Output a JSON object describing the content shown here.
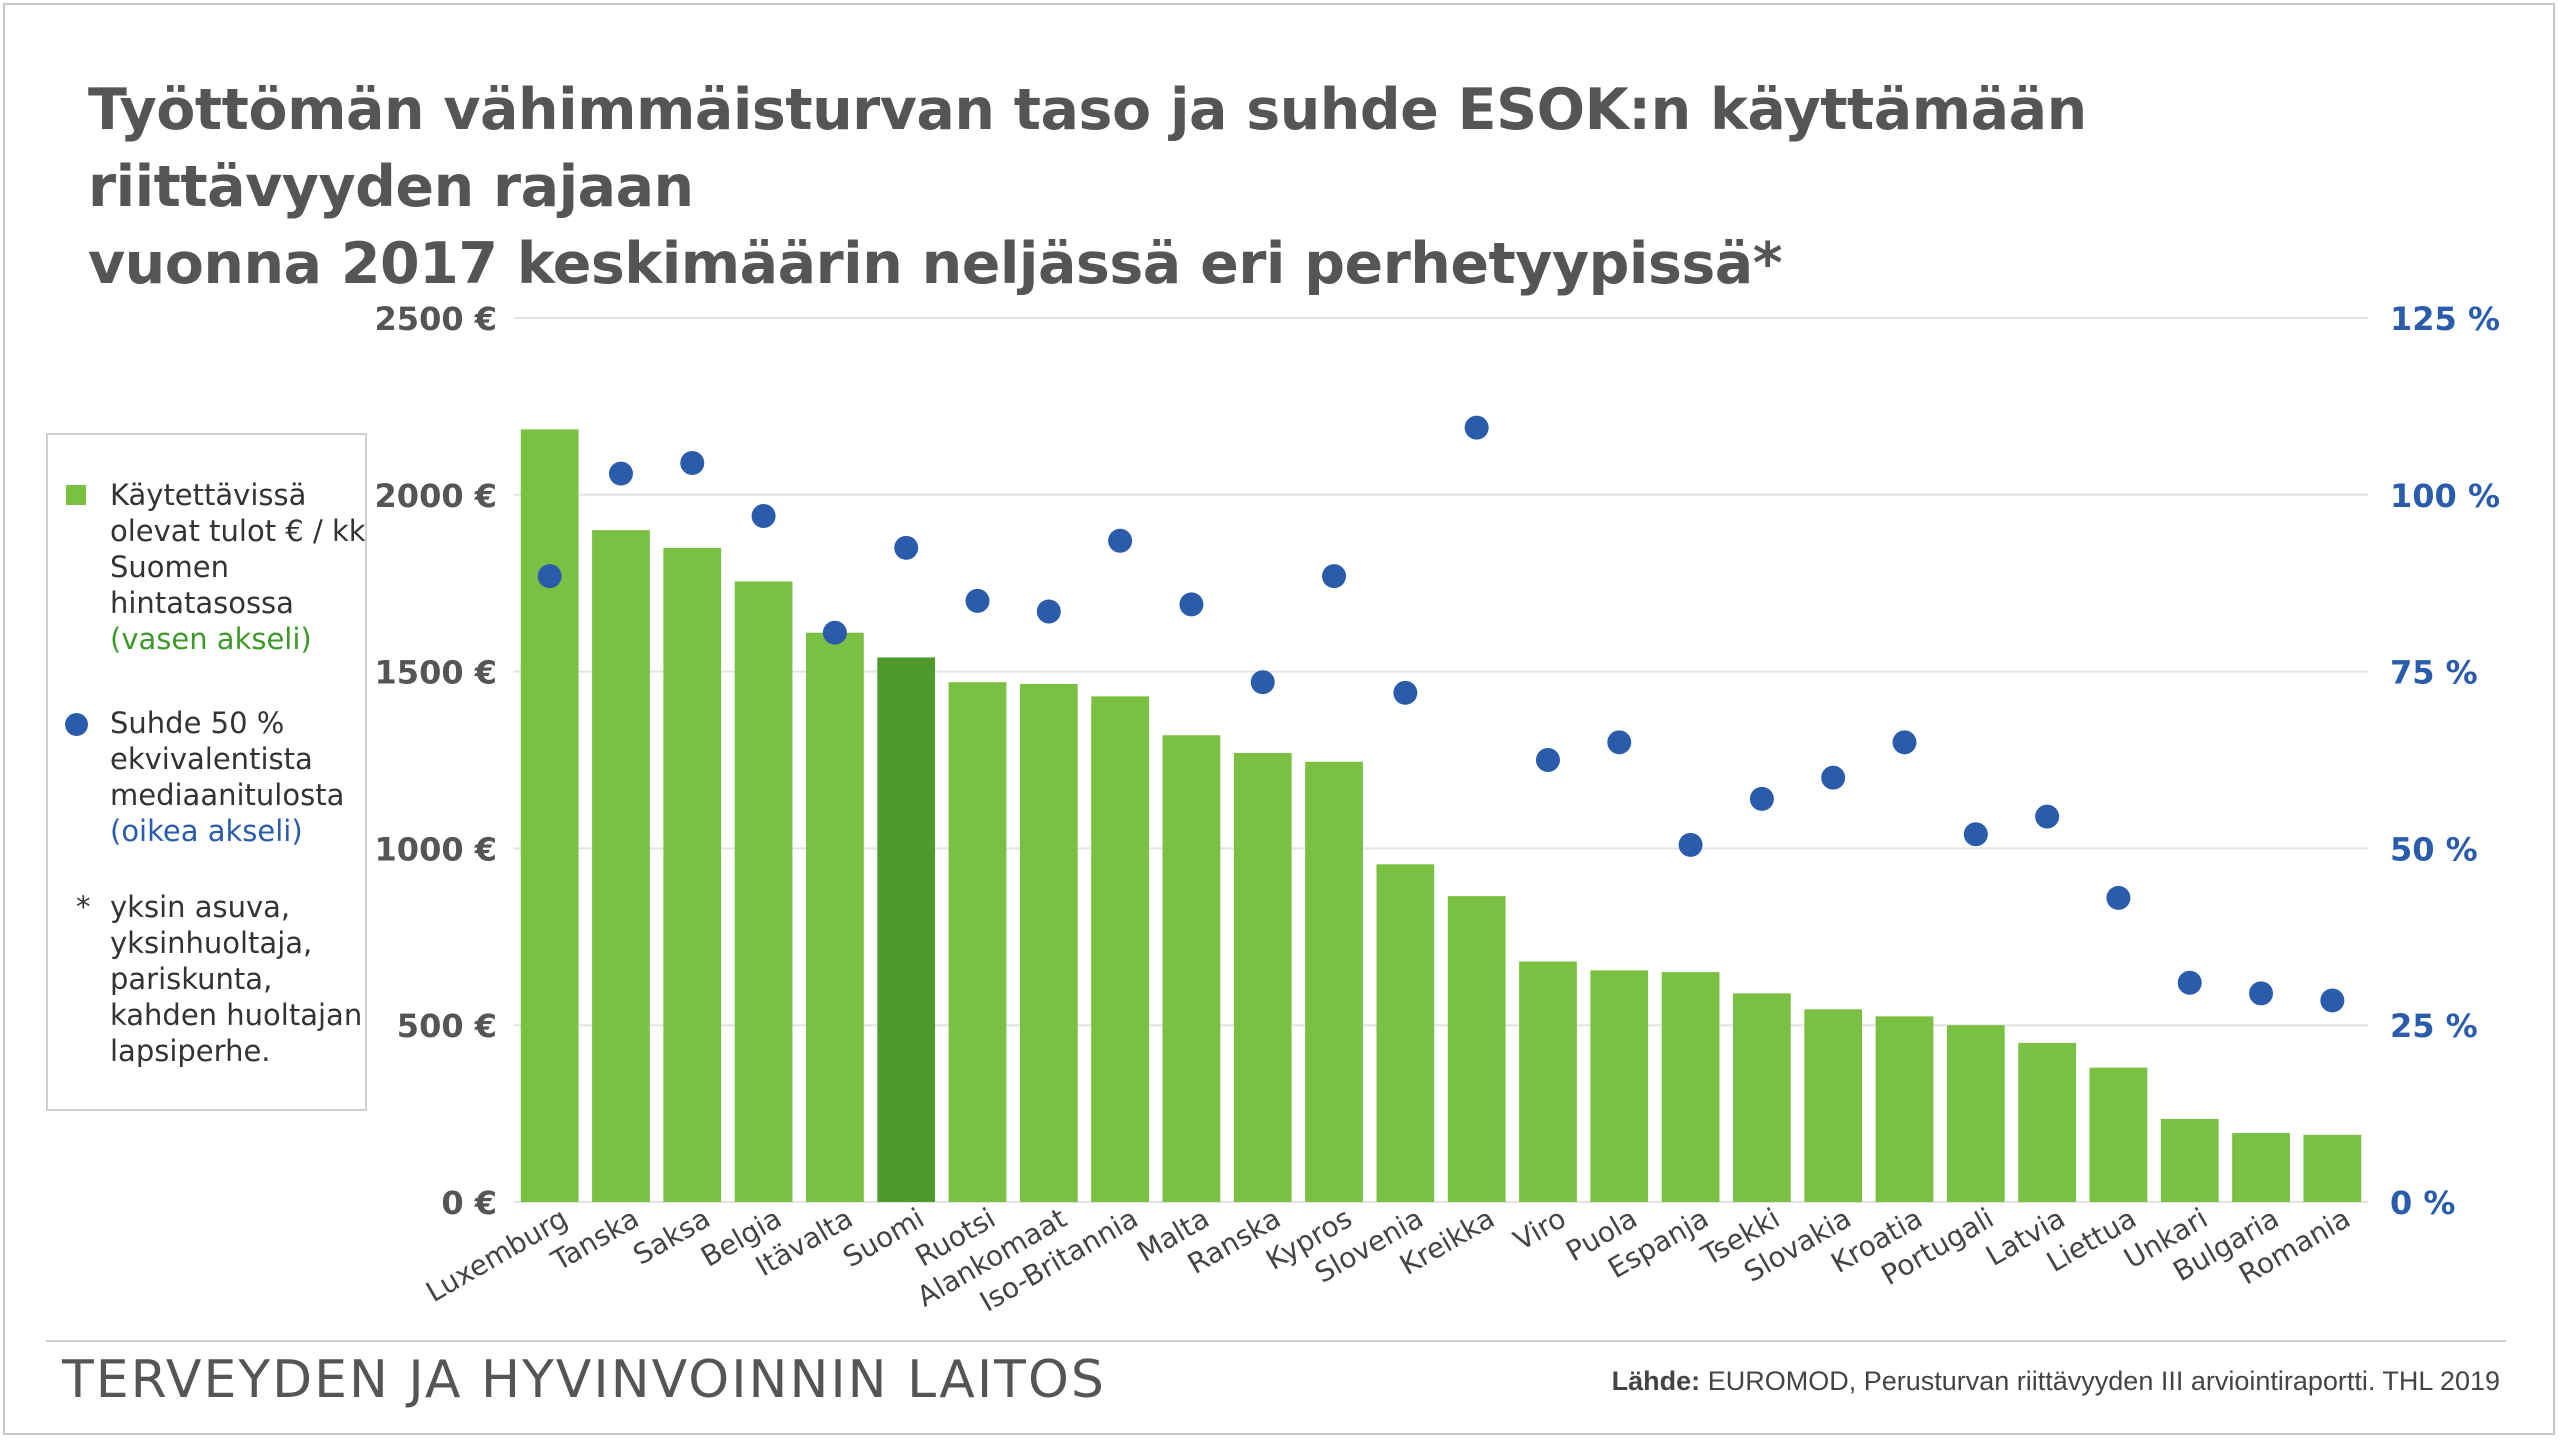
{
  "title_line1": "Työttömän vähimmäisturvan taso ja suhde ESOK:n käyttämään riittävyyden rajaan",
  "title_line2": "vuonna 2017 keskimäärin neljässä eri perhetyypissä*",
  "legend": {
    "bars_label": "Käytettävissä olevat tulot € / kk Suomen hintatasossa",
    "bars_hint": "(vasen akseli)",
    "dots_label": "Suhde 50 % ekvivalentista mediaanitulosta",
    "dots_hint": "(oikea akseli)",
    "note_mark": "*",
    "note_text": "yksin asuva, yksinhuoltaja, pariskunta, kahden huoltajan lapsiperhe."
  },
  "footer": {
    "organization": "TERVEYDEN JA HYVINVOINNIN LAITOS",
    "source_label": "Lähde:",
    "source_text": "EUROMOD, Perusturvan riittävyyden III arviointiraportti. THL 2019"
  },
  "colors": {
    "bar": "#7ac143",
    "bar_highlight": "#4f9a2d",
    "dot": "#2b5cab",
    "left_axis_text": "#555555",
    "right_axis_text": "#2b5cab",
    "grid": "#e3e3e3"
  },
  "chart_data": {
    "type": "bar",
    "categories": [
      "Luxemburg",
      "Tanska",
      "Saksa",
      "Belgia",
      "Itävalta",
      "Suomi",
      "Ruotsi",
      "Alankomaat",
      "Iso-Britannia",
      "Malta",
      "Ranska",
      "Kypros",
      "Slovenia",
      "Kreikka",
      "Viro",
      "Puola",
      "Espanja",
      "Tsekki",
      "Slovakia",
      "Kroatia",
      "Portugali",
      "Latvia",
      "Liettua",
      "Unkari",
      "Bulgaria",
      "Romania"
    ],
    "highlight_category": "Suomi",
    "series": [
      {
        "axis": "left",
        "type": "bar",
        "values": [
          2185,
          1900,
          1850,
          1755,
          1610,
          1540,
          1470,
          1465,
          1430,
          1320,
          1270,
          1245,
          955,
          865,
          680,
          655,
          650,
          590,
          545,
          525,
          500,
          450,
          380,
          235,
          195,
          190
        ]
      },
      {
        "axis": "right",
        "type": "scatter",
        "values": [
          88.5,
          103,
          104.5,
          97,
          80.5,
          92.5,
          85,
          83.5,
          93.5,
          84.5,
          73.5,
          88.5,
          72,
          109.5,
          62.5,
          65,
          50.5,
          57,
          60,
          65,
          52,
          54.5,
          43,
          31,
          29.5,
          28.5
        ]
      }
    ],
    "left_axis": {
      "ylim": [
        0,
        2500
      ],
      "ticks": [
        "0 €",
        "500 €",
        "1000 €",
        "1500 €",
        "2000 €",
        "2500 €"
      ]
    },
    "right_axis": {
      "ylim": [
        0,
        125
      ],
      "ticks": [
        "0 %",
        "25 %",
        "50 %",
        "75 %",
        "100 %",
        "125 %"
      ]
    },
    "grid": true
  }
}
